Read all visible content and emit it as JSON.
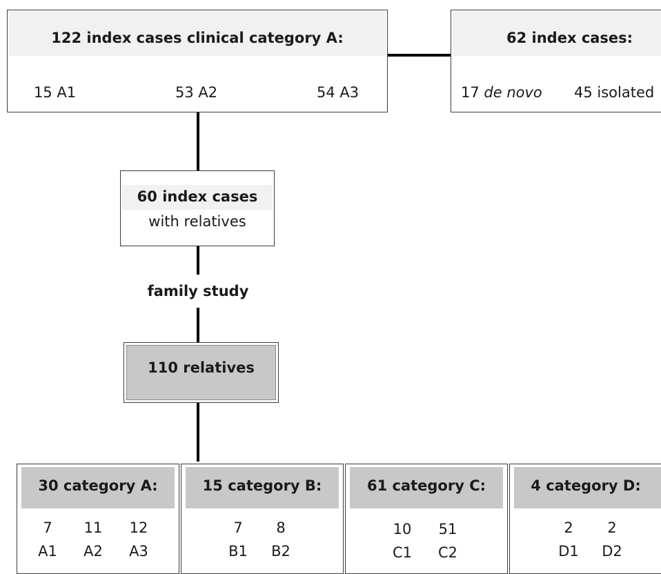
{
  "box_a": {
    "title": "122 index cases clinical category A:",
    "items": [
      "15 A1",
      "53 A2",
      "54 A3"
    ]
  },
  "box_b": {
    "title": "62 index cases:",
    "de_novo_count": "17",
    "de_novo_label": "de novo",
    "isolated": "45 isolated"
  },
  "box_relatives_index": {
    "title": "60 index cases",
    "subtitle": "with relatives"
  },
  "family_study_label": "family study",
  "relatives_box": {
    "title": "110 relatives"
  },
  "categories": [
    {
      "title": "30 category  A:",
      "counts": [
        "7",
        "11",
        "12"
      ],
      "labels": [
        "A1",
        "A2",
        "A3"
      ]
    },
    {
      "title": "15 category  B:",
      "counts": [
        "7",
        "8"
      ],
      "labels": [
        "B1",
        "B2"
      ]
    },
    {
      "title": "61 category  C:",
      "counts": [
        "10",
        "51"
      ],
      "labels": [
        "C1",
        "C2"
      ]
    },
    {
      "title": "4 category D:",
      "counts": [
        "2",
        "2"
      ],
      "labels": [
        "D1",
        "D2"
      ]
    }
  ]
}
